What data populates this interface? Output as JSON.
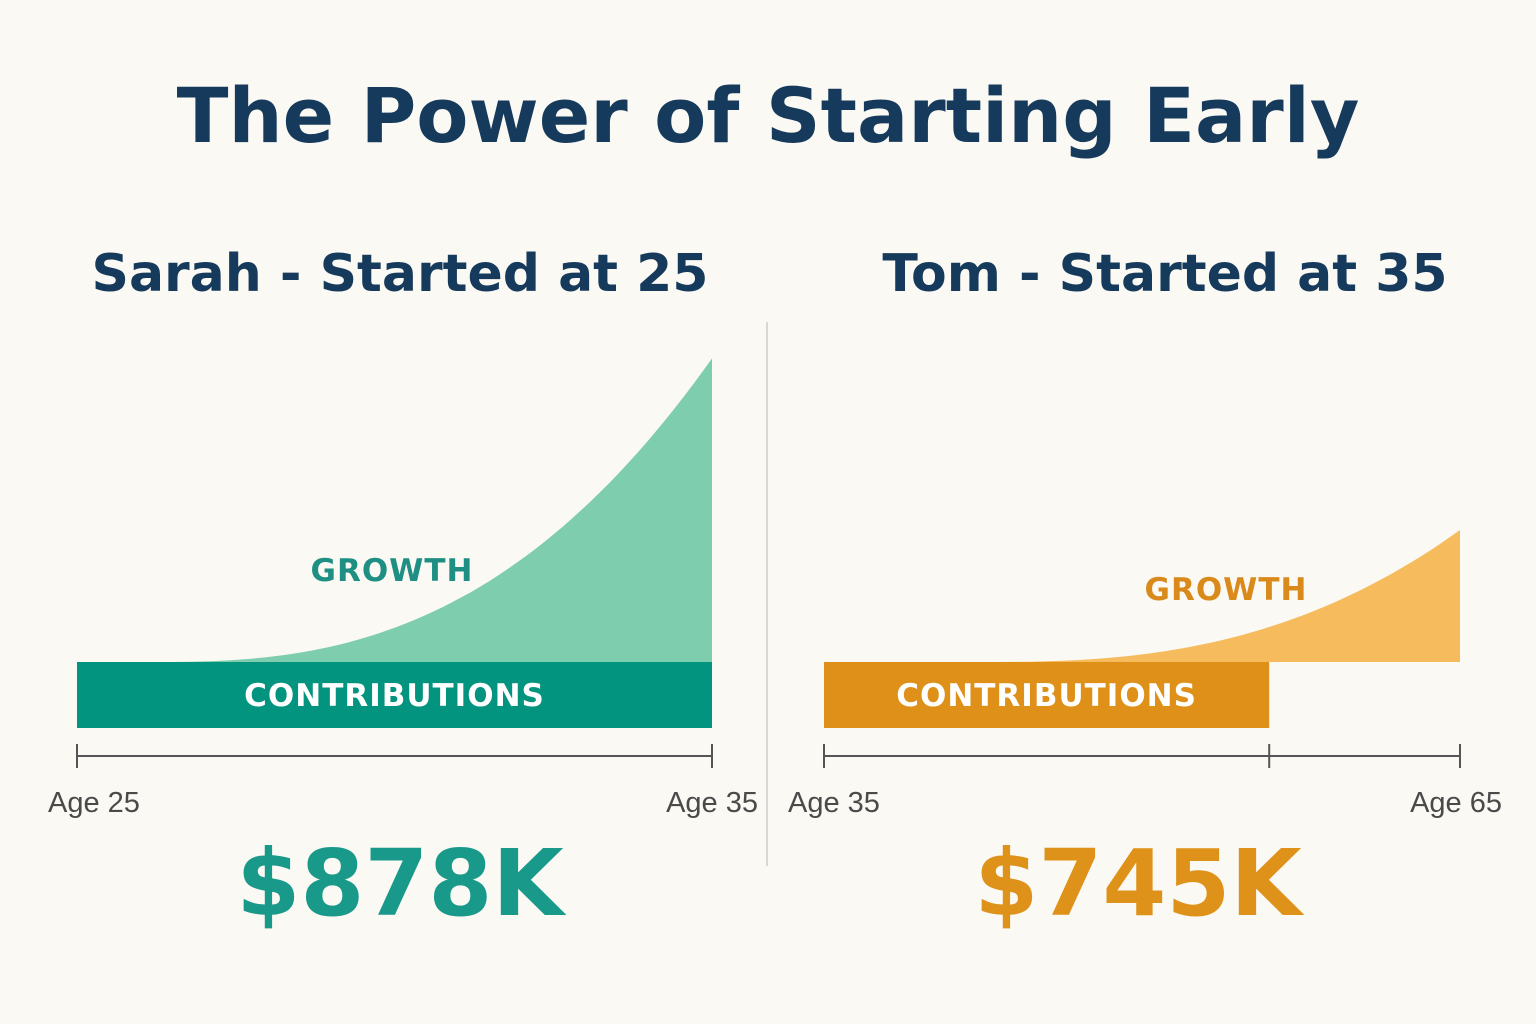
{
  "title": "The Power of Starting Early",
  "colors": {
    "title": "#163a5c",
    "sarah_contributions": "#03947f",
    "sarah_growth": "#7dcdae",
    "sarah_growth_label": "#1e8f82",
    "sarah_total": "#18998a",
    "tom_contributions": "#de9018",
    "tom_growth": "#f6bb5c",
    "tom_growth_label": "#d98a1b",
    "tom_total": "#df9219",
    "axis": "#555555"
  },
  "chart_data": [
    {
      "type": "area",
      "title": "Sarah - Started at 25",
      "start_label": "Age 25",
      "end_label": "Age 35",
      "contributions_label": "CONTRIBUTIONS",
      "growth_label": "GROWTH",
      "contributions_span": [
        0,
        1
      ],
      "growth_peak_relative": 4.6,
      "total": "$878K"
    },
    {
      "type": "area",
      "title": "Tom - Started at 35",
      "start_label": "Age 35",
      "end_label": "Age 65",
      "contributions_label": "CONTRIBUTIONS",
      "growth_label": "GROWTH",
      "contributions_span": [
        0,
        0.7
      ],
      "growth_peak_relative": 2.0,
      "total": "$745K"
    }
  ]
}
